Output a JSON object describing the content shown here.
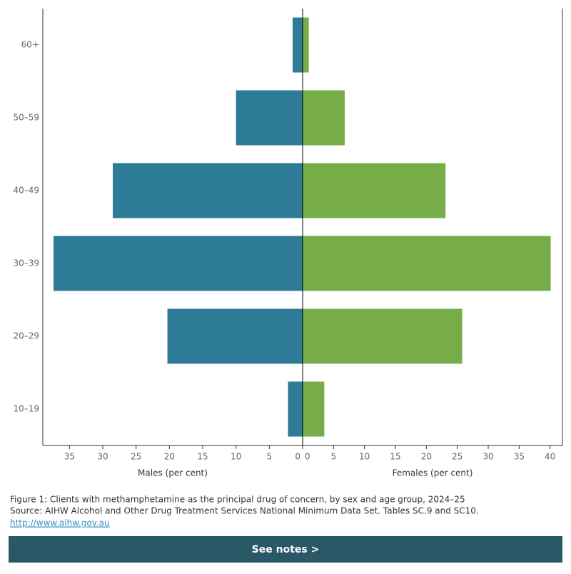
{
  "chart_data": [
    {
      "type": "bar",
      "orientation": "horizontal",
      "reversed": true,
      "categories": [
        "60+",
        "50–59",
        "40–49",
        "30–39",
        "20–29",
        "10–19"
      ],
      "values": [
        1.5,
        10,
        28.5,
        37.4,
        20.3,
        2.2
      ],
      "color": "#2e7b98",
      "xlim": [
        0,
        39
      ],
      "xticks": [
        0,
        5,
        10,
        15,
        20,
        25,
        30,
        35
      ],
      "xlabel": "Males (per cent)"
    },
    {
      "type": "bar",
      "orientation": "horizontal",
      "reversed": false,
      "values": [
        1.0,
        6.8,
        23.1,
        40.1,
        25.8,
        3.5
      ],
      "color": "#76ad48",
      "xlim": [
        0,
        42
      ],
      "xticks": [
        0,
        5,
        10,
        15,
        20,
        25,
        30,
        35,
        40
      ],
      "xlabel": "Females (per cent)"
    }
  ],
  "caption": "Figure 1: Clients with methamphetamine as the principal drug of concern, by sex and age group, 2024–25",
  "source": "Source: AIHW Alcohol and Other Drug Treatment Services National Minimum Data Set. Tables SC.9 and SC10.",
  "link": "http://www.aihw.gov.au",
  "button": "See notes >"
}
